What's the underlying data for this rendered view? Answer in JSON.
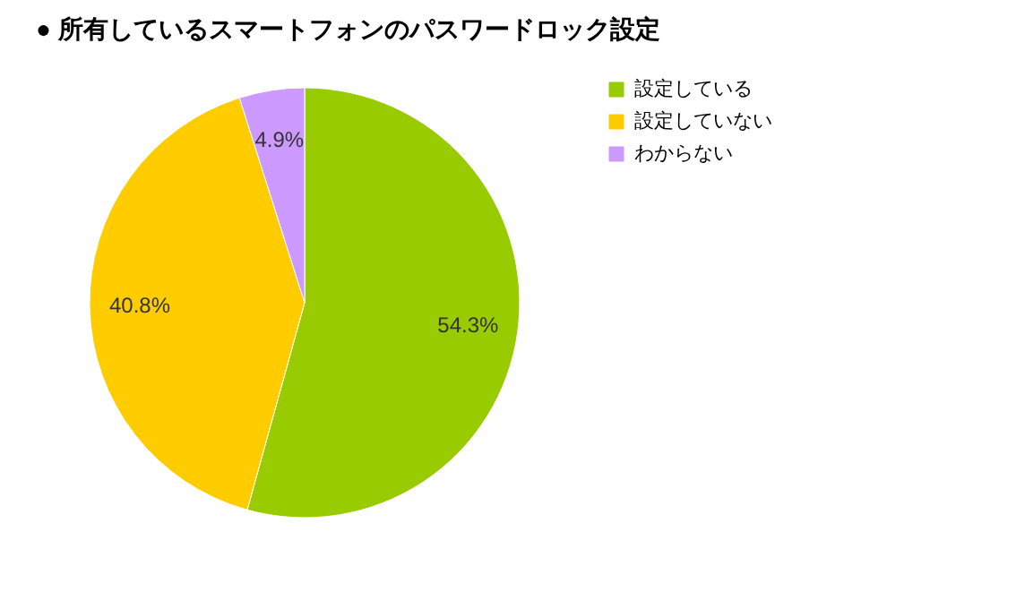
{
  "chart_data": {
    "type": "pie",
    "title": "● 所有しているスマートフォンのパスワードロック設定",
    "categories": [
      "設定している",
      "設定していない",
      "わからない"
    ],
    "values": [
      54.3,
      40.8,
      4.9
    ],
    "colors": [
      "#99cc00",
      "#ffcc00",
      "#cc99ff"
    ],
    "value_labels": [
      "54.3%",
      "40.8%",
      "4.9%"
    ],
    "legend": "right"
  }
}
